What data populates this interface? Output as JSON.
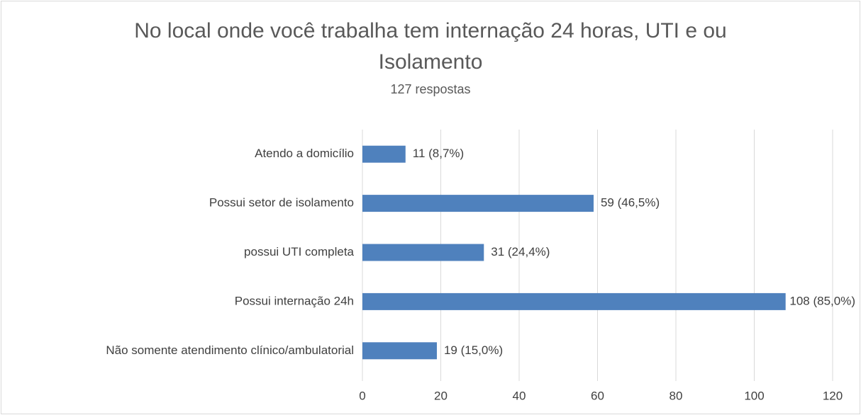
{
  "chart_data": {
    "type": "barh",
    "title": "No local onde você trabalha tem internação 24 horas, UTI e ou Isolamento",
    "subtitle": "127 respostas",
    "categories": [
      "Atendo a domicílio",
      "Possui setor de isolamento",
      "possui UTI completa",
      "Possui internação 24h",
      "Não somente atendimento clínico/ambulatorial"
    ],
    "values": [
      11,
      59,
      31,
      108,
      19
    ],
    "value_labels": [
      "11 (8,7%)",
      "59 (46,5%)",
      "31 (24,4%)",
      "108 (85,0%)",
      "19 (15,0%)"
    ],
    "color": "#4f81bd",
    "xlim": [
      0,
      120
    ],
    "xticks": [
      0,
      20,
      40,
      60,
      80,
      100,
      120
    ],
    "grid": true
  }
}
